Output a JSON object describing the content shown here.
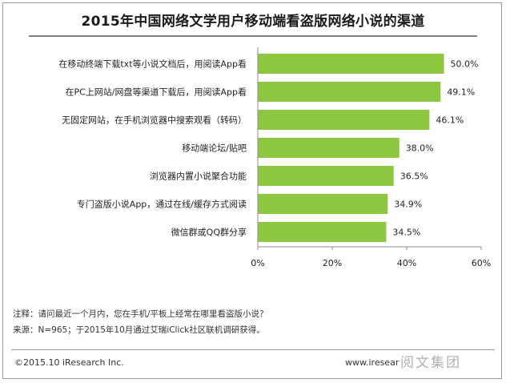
{
  "chart_data": {
    "type": "bar",
    "orientation": "horizontal",
    "title": "2015年中国网络文学用户移动端看盗版网络小说的渠道",
    "categories": [
      "在移动终端下载txt等小说文档后，用阅读App看",
      "在PC上网站/网盘等渠道下载后，用阅读App看",
      "无固定网站，在手机浏览器中搜索观看（转码）",
      "移动端论坛/贴吧",
      "浏览器内置小说聚合功能",
      "专门盗版小说App，通过在线/缓存方式阅读",
      "微信群或QQ群分享"
    ],
    "values": [
      50.0,
      49.1,
      46.1,
      38.0,
      36.5,
      34.9,
      34.5
    ],
    "value_labels": [
      "50.0%",
      "49.1%",
      "46.1%",
      "38.0%",
      "36.5%",
      "34.9%",
      "34.5%"
    ],
    "xlim": [
      0,
      60
    ],
    "x_ticks": [
      0,
      20,
      40,
      60
    ],
    "x_tick_labels": [
      "0%",
      "20%",
      "40%",
      "60%"
    ],
    "grid": false,
    "bar_color": "#8dc63f"
  },
  "notes": {
    "note_line": "注释：请问最近一个月内，您在手机/平板上经常在哪里看盗版小说？",
    "source_line": "来源：N=965；于2015年10月通过艾瑞iClick社区联机调研获得。"
  },
  "footer": {
    "copyright": "©2015.10 iResearch Inc.",
    "website": "www.iresear",
    "watermark": "阅文集团"
  }
}
